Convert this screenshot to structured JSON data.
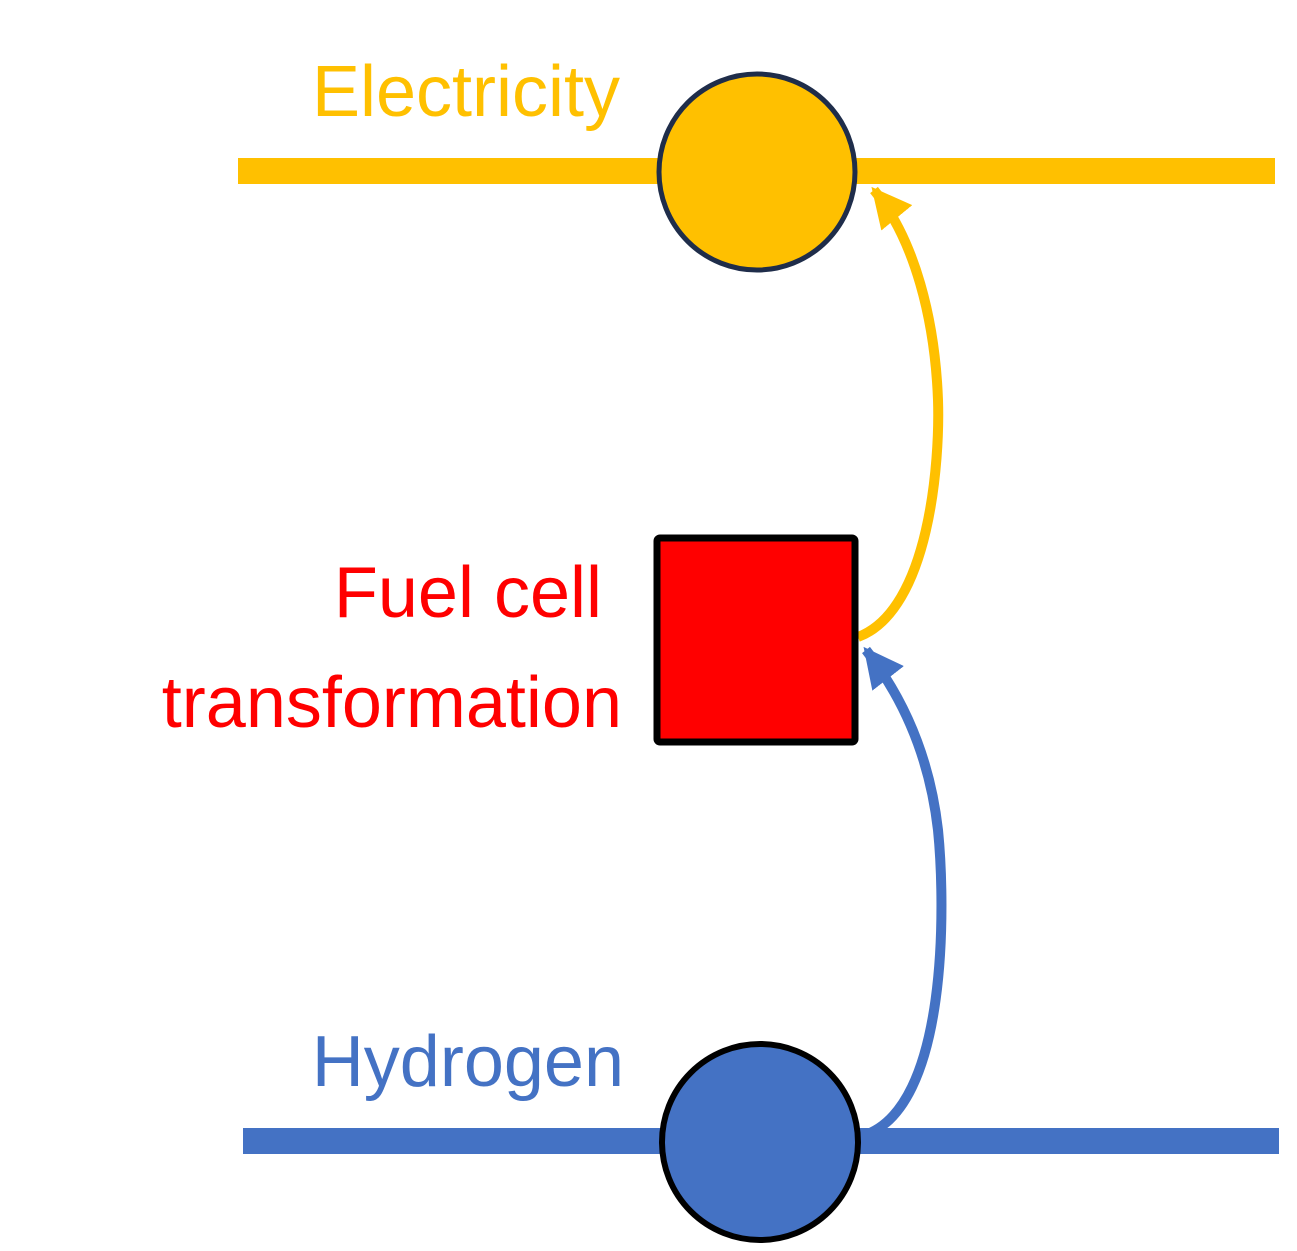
{
  "carriers": {
    "electricity": {
      "label": "Electricity",
      "color": "#FFC000",
      "node_stroke": "#1F2D4A"
    },
    "hydrogen": {
      "label": "Hydrogen",
      "color": "#4472C4",
      "node_stroke": "#000000"
    }
  },
  "transformation": {
    "label_line1": "Fuel cell",
    "label_line2": "transformation",
    "color": "#FF0000",
    "stroke": "#000000"
  }
}
